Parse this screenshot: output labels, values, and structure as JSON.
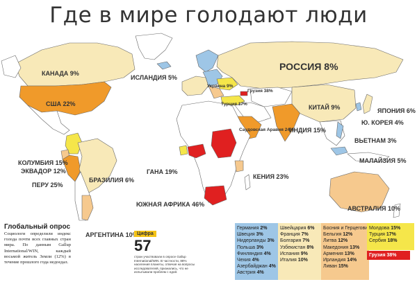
{
  "title": "Где в мире голодают люди",
  "colors": {
    "ocean": "#ffffff",
    "land": "#ffffff",
    "low": "#9ec6e6",
    "lowmid": "#f8e9b8",
    "mid": "#f6c98e",
    "midhigh": "#f5e64a",
    "high": "#f09a2a",
    "top": "#e02020"
  },
  "labels": {
    "canada": "КАНАДА 9%",
    "usa": "США 22%",
    "iceland": "ИСЛАНДИЯ 5%",
    "russia": "РОССИЯ 8%",
    "ukraine": "Украина 9%",
    "georgia_map": "Грузия 38%",
    "turkey_map": "Турция 17%",
    "saudi": "Саудовская Аравия 24%",
    "china": "КИТАЙ 9%",
    "japan": "ЯПОНИЯ 6%",
    "korea": "Ю. КОРЕЯ 4%",
    "india": "ИНДИЯ 15%",
    "vietnam": "ВЬЕТНАМ 3%",
    "malaysia": "МАЛАЙЗИЯ 5%",
    "colombia": "КОЛУМБИЯ 15%",
    "ecuador": "ЭКВАДОР 12%",
    "peru": "ПЕРУ 25%",
    "brazil": "БРАЗИЛИЯ 6%",
    "argentina": "АРГЕНТИНА 10%",
    "ghana": "ГАНА 19%",
    "kenya": "КЕНИЯ 23%",
    "south_africa": "ЮЖНАЯ АФРИКА 46%",
    "australia": "АВСТРАЛИЯ 10%"
  },
  "survey": {
    "title": "Глобальный опрос",
    "text": "Социологи определили индекс голода почти всех главных стран мира. По данным Gallup International/WIN, каждый восьмой житель Земли (12%) в течение прошлого года недоедал."
  },
  "figure": {
    "tag": "Цифра",
    "value": "57",
    "text": "стран участвовали в опросе Gallup International/WIN. В частности, 88% населения планеты, отвечая на вопросы исследователей, признались, что не испытывали проблем с едой."
  },
  "columns": [
    [
      [
        "Германия",
        "2%"
      ],
      [
        "Швеция",
        "3%"
      ],
      [
        "Нидерланды",
        "3%"
      ],
      [
        "Польша",
        "3%"
      ],
      [
        "Финляндия",
        "4%"
      ],
      [
        "Чехия",
        "4%"
      ],
      [
        "Азербайджан",
        "4%"
      ],
      [
        "Австрия",
        "4%"
      ]
    ],
    [
      [
        "Швейцария",
        "6%"
      ],
      [
        "Франция",
        "7%"
      ],
      [
        "Болгария",
        "7%"
      ],
      [
        "Узбекистан",
        "8%"
      ],
      [
        "Испания",
        "9%"
      ],
      [
        "Италия",
        "10%"
      ]
    ],
    [
      [
        "Босния и Герцеговина",
        "11%"
      ],
      [
        "Бельгия",
        "12%"
      ],
      [
        "Литва",
        "12%"
      ],
      [
        "Македония",
        "13%"
      ],
      [
        "Армения",
        "13%"
      ],
      [
        "Ирландия",
        "14%"
      ],
      [
        "Ливан",
        "15%"
      ]
    ],
    [
      [
        "Молдова",
        "15%"
      ],
      [
        "Турция",
        "17%"
      ],
      [
        "Сербия",
        "18%"
      ]
    ]
  ],
  "georgia_box": "Грузия 38%"
}
